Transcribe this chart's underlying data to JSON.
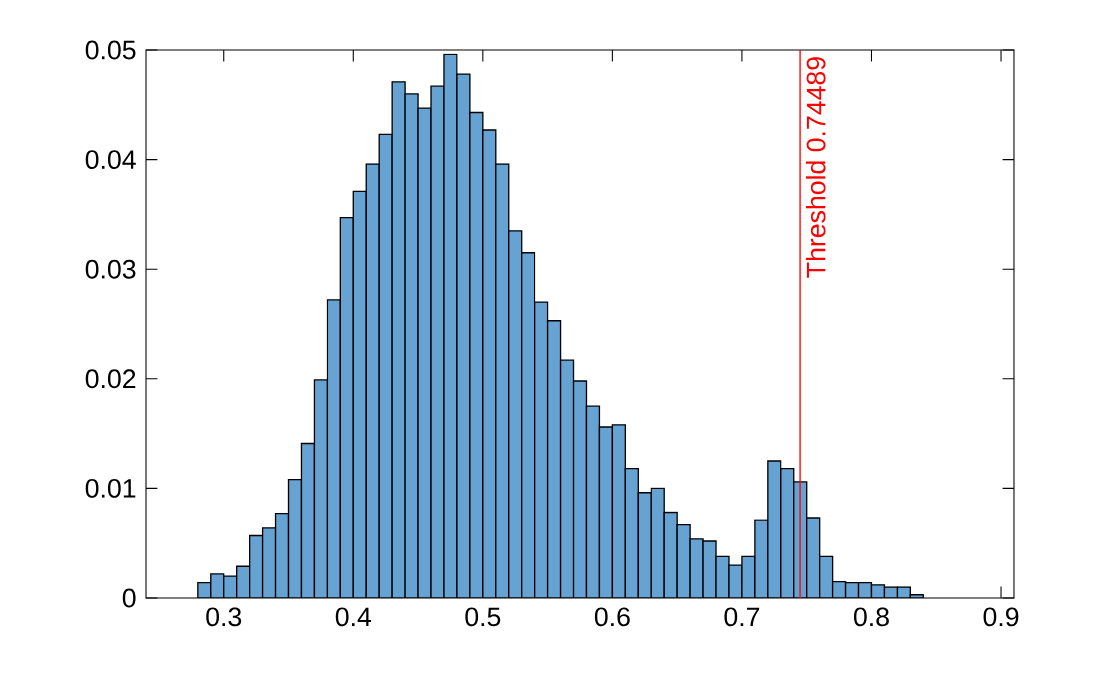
{
  "chart_data": {
    "type": "histogram",
    "bins": [
      0.28,
      0.29,
      0.3,
      0.31,
      0.32,
      0.33,
      0.34,
      0.35,
      0.36,
      0.37,
      0.38,
      0.39,
      0.4,
      0.41,
      0.42,
      0.43,
      0.44,
      0.45,
      0.46,
      0.47,
      0.48,
      0.49,
      0.5,
      0.51,
      0.52,
      0.53,
      0.54,
      0.55,
      0.56,
      0.57,
      0.58,
      0.59,
      0.6,
      0.61,
      0.62,
      0.63,
      0.64,
      0.65,
      0.66,
      0.67,
      0.68,
      0.69,
      0.7,
      0.71,
      0.72,
      0.73,
      0.74,
      0.75,
      0.76,
      0.77,
      0.78,
      0.79,
      0.8,
      0.81,
      0.82,
      0.83,
      0.84
    ],
    "values": [
      0.0014,
      0.0022,
      0.002,
      0.0029,
      0.0057,
      0.0064,
      0.0077,
      0.0108,
      0.0141,
      0.0199,
      0.0272,
      0.0347,
      0.0371,
      0.0396,
      0.0423,
      0.0471,
      0.046,
      0.0447,
      0.0467,
      0.0496,
      0.0478,
      0.0443,
      0.0427,
      0.0396,
      0.0335,
      0.0315,
      0.027,
      0.0253,
      0.0217,
      0.0198,
      0.0175,
      0.0156,
      0.0158,
      0.0118,
      0.0096,
      0.01,
      0.0078,
      0.0067,
      0.0054,
      0.0052,
      0.0038,
      0.003,
      0.0038,
      0.0071,
      0.0125,
      0.0118,
      0.0106,
      0.0073,
      0.0038,
      0.0015,
      0.0014,
      0.0014,
      0.0012,
      0.001,
      0.001,
      0.0003
    ],
    "color": "#66a3d2",
    "xlim": [
      0.24,
      0.91
    ],
    "ylim": [
      0,
      0.05
    ],
    "xticks": [
      0.3,
      0.4,
      0.5,
      0.6,
      0.7,
      0.8,
      0.9
    ],
    "yticks": [
      0,
      0.01,
      0.02,
      0.03,
      0.04,
      0.05
    ],
    "ref_lines": [
      {
        "axis": "x",
        "value": 0.74489,
        "label": "Threshold 0.74489",
        "color": "#ff0000"
      }
    ],
    "grid": false
  }
}
